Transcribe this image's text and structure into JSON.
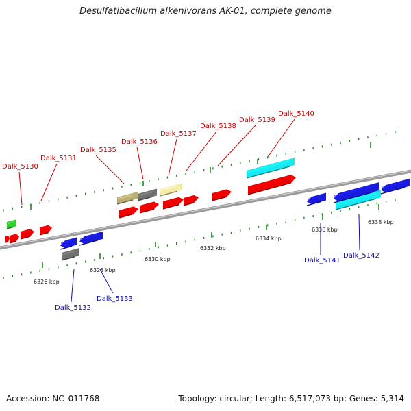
{
  "title": "Desulfatibacillum alkenivorans AK-01, complete genome",
  "footer": {
    "accession": "Accession: NC_011768",
    "info": "Topology: circular; Length: 6,517,073 bp; Genes: 5,314"
  },
  "colors": {
    "red": "#ee0000",
    "blue": "#1a1add",
    "cyan": "#18e8f2",
    "gray": "#707070",
    "khaki": "#b8ad72",
    "cream": "#f4eca4",
    "green": "#33cc33",
    "tick": "#228b22",
    "red_label": "#cc0000",
    "blue_label": "#1010b0"
  },
  "kbp_labels": [
    "6326 kbp",
    "6328 kbp",
    "6330 kbp",
    "6332 kbp",
    "6334 kbp",
    "6336 kbp",
    "6338 kbp"
  ],
  "genes_top": [
    "Dalk_5130",
    "Dalk_5131",
    "Dalk_5135",
    "Dalk_5136",
    "Dalk_5137",
    "Dalk_5138",
    "Dalk_5139",
    "Dalk_5140"
  ],
  "genes_bottom": [
    "Dalk_5132",
    "Dalk_5133",
    "Dalk_5141",
    "Dalk_5142"
  ]
}
